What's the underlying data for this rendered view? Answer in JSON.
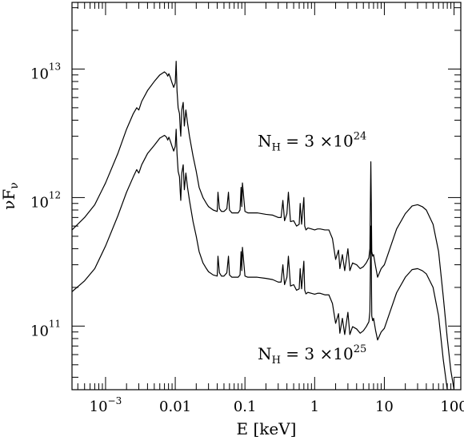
{
  "chart_data": {
    "type": "line",
    "xlabel": "E [keV]",
    "ylabel": "νF",
    "ylabel_sub": "ν",
    "x_scale": "log",
    "y_scale": "log",
    "xlim": [
      0.00033,
      125
    ],
    "ylim": [
      32000000000,
      33000000000000
    ],
    "grid": false,
    "x_ticks": [
      {
        "value": 0.001,
        "base": "10",
        "exp": "−3"
      },
      {
        "value": 0.01,
        "base": "0.01",
        "exp": ""
      },
      {
        "value": 0.1,
        "base": "0.1",
        "exp": ""
      },
      {
        "value": 1,
        "base": "1",
        "exp": ""
      },
      {
        "value": 10,
        "base": "10",
        "exp": ""
      },
      {
        "value": 100,
        "base": "100",
        "exp": ""
      }
    ],
    "y_ticks": [
      {
        "value": 100000000000,
        "base": "10",
        "exp": "11"
      },
      {
        "value": 1000000000000,
        "base": "10",
        "exp": "12"
      },
      {
        "value": 10000000000000,
        "base": "10",
        "exp": "13"
      }
    ],
    "annotations": [
      {
        "id": "nh24",
        "prefix": "N",
        "sub": "H",
        "body": " = 3 ×10",
        "sup": "24",
        "anchor_x": 0.5,
        "anchor_y": 2500000000000
      },
      {
        "id": "nh25",
        "prefix": "N",
        "sub": "H",
        "body": " = 3 ×10",
        "sup": "25",
        "anchor_x": 0.5,
        "anchor_y": 55000000000
      }
    ],
    "series": [
      {
        "x": [
          0.00033,
          0.0005,
          0.0007,
          0.001,
          0.0015,
          0.002,
          0.0025,
          0.0028,
          0.003,
          0.0033,
          0.004,
          0.005,
          0.006,
          0.007,
          0.0075,
          0.0078,
          0.0081,
          0.0085,
          0.009,
          0.0095,
          0.01,
          0.0103,
          0.0106,
          0.011,
          0.0115,
          0.0118,
          0.012,
          0.0124,
          0.013,
          0.0135,
          0.0142,
          0.015,
          0.016,
          0.018,
          0.02,
          0.022,
          0.025,
          0.028,
          0.03,
          0.035,
          0.04,
          0.041,
          0.043,
          0.046,
          0.05,
          0.055,
          0.058,
          0.06,
          0.065,
          0.07,
          0.08,
          0.085,
          0.088,
          0.09,
          0.092,
          0.1,
          0.11,
          0.12,
          0.15,
          0.2,
          0.25,
          0.3,
          0.33,
          0.35,
          0.37,
          0.4,
          0.42,
          0.45,
          0.5,
          0.55,
          0.6,
          0.62,
          0.65,
          0.7,
          0.72,
          0.75,
          0.8,
          0.9,
          1.0,
          1.1,
          1.2,
          1.4,
          1.6,
          1.8,
          2.0,
          2.2,
          2.3,
          2.5,
          2.7,
          3.0,
          3.2,
          3.5,
          4.0,
          4.5,
          5.0,
          5.5,
          6.0,
          6.2,
          6.4,
          6.5,
          6.6,
          6.8,
          7.0,
          7.5,
          8.0,
          9.0,
          10,
          12,
          15,
          20,
          25,
          30,
          35,
          40,
          50,
          60,
          70,
          80,
          90,
          100
        ],
        "y": [
          560000000000,
          700000000000,
          880000000000,
          1300000000000,
          2200000000000,
          3400000000000,
          4500000000000,
          5000000000000,
          4800000000000,
          5600000000000,
          6800000000000,
          8000000000000,
          9000000000000,
          9500000000000,
          9200000000000,
          8800000000000,
          9200000000000,
          8600000000000,
          7800000000000,
          7200000000000,
          7800000000000,
          11500000000000,
          6800000000000,
          5000000000000,
          4500000000000,
          3400000000000,
          3000000000000,
          4800000000000,
          5500000000000,
          3600000000000,
          4800000000000,
          3800000000000,
          3000000000000,
          2100000000000,
          1600000000000,
          1200000000000,
          1000000000000,
          900000000000,
          850000000000,
          800000000000,
          780000000000,
          1100000000000,
          820000000000,
          780000000000,
          780000000000,
          820000000000,
          1100000000000,
          800000000000,
          760000000000,
          760000000000,
          760000000000,
          800000000000,
          1200000000000,
          850000000000,
          1300000000000,
          780000000000,
          760000000000,
          760000000000,
          760000000000,
          740000000000,
          730000000000,
          700000000000,
          700000000000,
          950000000000,
          660000000000,
          750000000000,
          1100000000000,
          650000000000,
          660000000000,
          600000000000,
          620000000000,
          900000000000,
          620000000000,
          1000000000000,
          600000000000,
          560000000000,
          580000000000,
          570000000000,
          560000000000,
          570000000000,
          570000000000,
          560000000000,
          560000000000,
          480000000000,
          330000000000,
          390000000000,
          280000000000,
          360000000000,
          270000000000,
          400000000000,
          270000000000,
          310000000000,
          300000000000,
          280000000000,
          290000000000,
          310000000000,
          340000000000,
          400000000000,
          1900000000000,
          900000000000,
          380000000000,
          350000000000,
          360000000000,
          290000000000,
          240000000000,
          280000000000,
          300000000000,
          400000000000,
          570000000000,
          750000000000,
          860000000000,
          880000000000,
          850000000000,
          800000000000,
          620000000000,
          380000000000,
          170000000000,
          80000000000,
          45000000000,
          32000000000
        ]
      },
      {
        "x": [
          0.00033,
          0.0005,
          0.0007,
          0.001,
          0.0015,
          0.002,
          0.0025,
          0.0028,
          0.003,
          0.0033,
          0.004,
          0.005,
          0.006,
          0.007,
          0.0075,
          0.0078,
          0.0081,
          0.0085,
          0.009,
          0.0095,
          0.01,
          0.0103,
          0.0106,
          0.011,
          0.0115,
          0.0118,
          0.012,
          0.0124,
          0.013,
          0.0135,
          0.0142,
          0.015,
          0.016,
          0.018,
          0.02,
          0.022,
          0.025,
          0.028,
          0.03,
          0.035,
          0.04,
          0.041,
          0.043,
          0.046,
          0.05,
          0.055,
          0.058,
          0.06,
          0.065,
          0.07,
          0.08,
          0.085,
          0.088,
          0.09,
          0.092,
          0.1,
          0.11,
          0.12,
          0.15,
          0.2,
          0.25,
          0.3,
          0.33,
          0.35,
          0.37,
          0.4,
          0.42,
          0.45,
          0.5,
          0.55,
          0.6,
          0.62,
          0.65,
          0.7,
          0.72,
          0.75,
          0.8,
          0.9,
          1.0,
          1.1,
          1.2,
          1.4,
          1.6,
          1.8,
          2.0,
          2.2,
          2.3,
          2.5,
          2.7,
          3.0,
          3.2,
          3.5,
          4.0,
          4.5,
          5.0,
          5.5,
          6.0,
          6.2,
          6.4,
          6.5,
          6.6,
          6.8,
          7.0,
          7.5,
          8.0,
          9.0,
          10,
          12,
          15,
          20,
          25,
          30,
          35,
          40,
          50,
          60,
          70,
          80,
          90,
          100
        ],
        "y": [
          185000000000,
          225000000000,
          280000000000,
          420000000000,
          720000000000,
          1100000000000,
          1450000000000,
          1650000000000,
          1550000000000,
          1800000000000,
          2200000000000,
          2550000000000,
          2900000000000,
          3050000000000,
          2950000000000,
          2800000000000,
          2950000000000,
          2750000000000,
          2500000000000,
          2300000000000,
          2500000000000,
          3400000000000,
          2200000000000,
          1600000000000,
          1450000000000,
          1100000000000,
          950000000000,
          1550000000000,
          1800000000000,
          1150000000000,
          1550000000000,
          1200000000000,
          950000000000,
          650000000000,
          500000000000,
          380000000000,
          310000000000,
          280000000000,
          265000000000,
          250000000000,
          245000000000,
          350000000000,
          260000000000,
          245000000000,
          245000000000,
          260000000000,
          350000000000,
          250000000000,
          240000000000,
          240000000000,
          240000000000,
          250000000000,
          380000000000,
          270000000000,
          410000000000,
          245000000000,
          240000000000,
          240000000000,
          240000000000,
          235000000000,
          230000000000,
          220000000000,
          220000000000,
          300000000000,
          210000000000,
          240000000000,
          350000000000,
          205000000000,
          210000000000,
          190000000000,
          195000000000,
          280000000000,
          195000000000,
          320000000000,
          190000000000,
          178000000000,
          183000000000,
          180000000000,
          177000000000,
          180000000000,
          180000000000,
          175000000000,
          175000000000,
          150000000000,
          105000000000,
          125000000000,
          88000000000,
          115000000000,
          86000000000,
          128000000000,
          86000000000,
          99000000000,
          95000000000,
          88000000000,
          92000000000,
          99000000000,
          108000000000,
          130000000000,
          600000000000,
          290000000000,
          120000000000,
          110000000000,
          115000000000,
          92000000000,
          78000000000,
          90000000000,
          96000000000,
          128000000000,
          182000000000,
          240000000000,
          275000000000,
          280000000000,
          270000000000,
          255000000000,
          200000000000,
          120000000000,
          55000000000,
          32000000000,
          32000000000,
          32000000000
        ]
      }
    ]
  }
}
